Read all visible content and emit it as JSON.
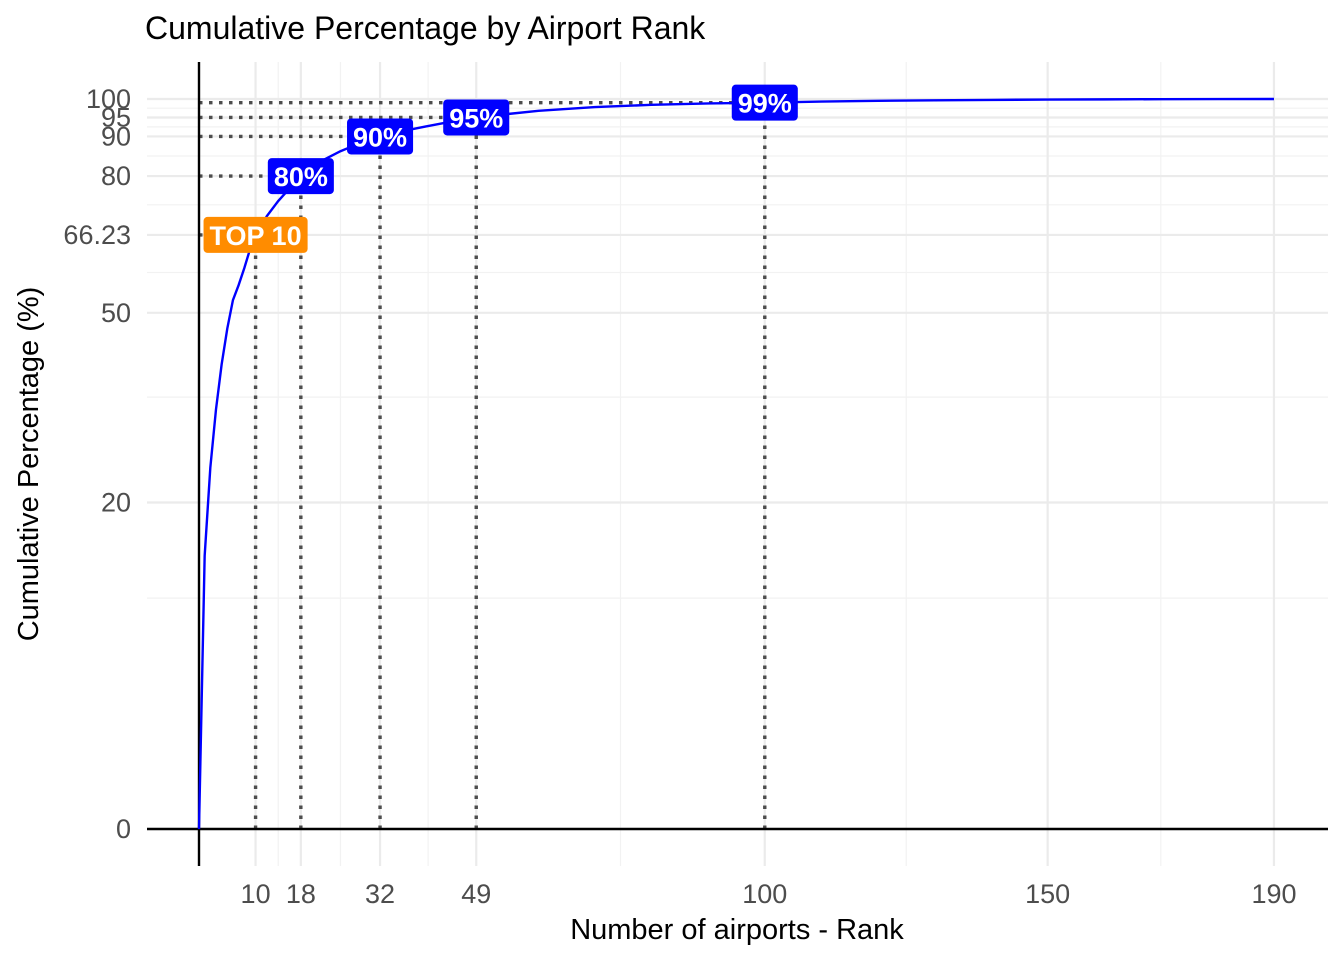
{
  "chart_data": {
    "type": "line",
    "title": "Cumulative Percentage by Airport Rank",
    "xlabel": "Number of airports - Rank",
    "ylabel": "Cumulative Percentage (%)",
    "xlim": [
      0,
      190
    ],
    "ylim": [
      0,
      100
    ],
    "y_axis_scale": "square-root",
    "x_ticks": [
      10,
      18,
      32,
      49,
      100,
      150,
      190
    ],
    "y_ticks": [
      0,
      20,
      50,
      66.23,
      80,
      90,
      95,
      100
    ],
    "x_tick_labels": [
      "10",
      "18",
      "32",
      "49",
      "100",
      "150",
      "190"
    ],
    "y_tick_labels": [
      "0",
      "20",
      "50",
      "66.23",
      "80",
      "90",
      "95",
      "100"
    ],
    "grid": true,
    "series": [
      {
        "color": "#0000ff",
        "x": [
          0,
          1,
          2,
          3,
          4,
          5,
          6,
          7,
          8,
          9,
          10,
          12,
          14,
          16,
          18,
          20,
          22,
          25,
          28,
          32,
          36,
          40,
          45,
          49,
          55,
          60,
          70,
          80,
          90,
          100,
          110,
          120,
          130,
          140,
          150,
          160,
          170,
          180,
          190
        ],
        "y": [
          0,
          14,
          24.5,
          33,
          40.5,
          47,
          52.5,
          55.5,
          59,
          63,
          66.23,
          70.5,
          74,
          77,
          80,
          82.2,
          84,
          86.2,
          88,
          90,
          91.4,
          92.6,
          94,
          95,
          96,
          96.8,
          97.8,
          98.4,
          98.8,
          99,
          99.3,
          99.5,
          99.65,
          99.75,
          99.85,
          99.9,
          99.95,
          99.98,
          100
        ]
      }
    ],
    "reference_lines": [
      {
        "label": "TOP 10",
        "x": 10,
        "y": 66.23,
        "color": "#ff8c00"
      },
      {
        "label": "80%",
        "x": 18,
        "y": 80,
        "color": "#0000ff"
      },
      {
        "label": "90%",
        "x": 32,
        "y": 90,
        "color": "#0000ff"
      },
      {
        "label": "95%",
        "x": 49,
        "y": 95,
        "color": "#0000ff"
      },
      {
        "label": "99%",
        "x": 100,
        "y": 99,
        "color": "#0000ff"
      }
    ]
  }
}
